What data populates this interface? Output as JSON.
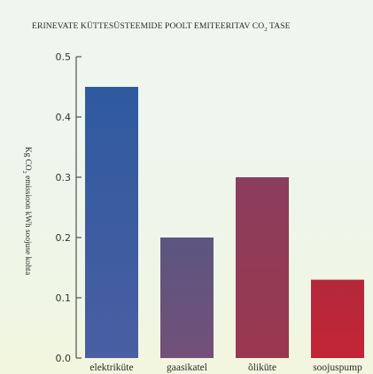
{
  "chart_data": {
    "type": "bar",
    "title": "ERINEVATE KÜTTESÜSTEEMIDE POOLT EMITEERITAV CO",
    "title_sub": "2",
    "title_tail": " TASE",
    "ylabel": "Kg CO",
    "ylabel_sub": "2",
    "ylabel_tail": " emissioon kWh soojuse kohta",
    "categories": [
      "elektriküte",
      "gaasikatel",
      "õliküte",
      "soojuspump"
    ],
    "values": [
      0.45,
      0.2,
      0.3,
      0.13
    ],
    "ylim": [
      0,
      0.5
    ],
    "yticks": [
      0.0,
      0.1,
      0.2,
      0.3,
      0.4,
      0.5
    ],
    "ytick_labels": [
      "0.0",
      "0.1",
      "0.2",
      "0.3",
      "0.4",
      "0.5"
    ],
    "grid": false,
    "legend": "none",
    "colors": {
      "bar_top": [
        "#2f5aa0",
        "#5b5680",
        "#8a3d5c",
        "#b3283c"
      ],
      "bar_bottom": [
        "#4a5ea2",
        "#735079",
        "#9a384f",
        "#c42536"
      ],
      "axis": "#333333",
      "background_top": "#eef6ef",
      "background_bottom": "#f2f6de"
    }
  }
}
